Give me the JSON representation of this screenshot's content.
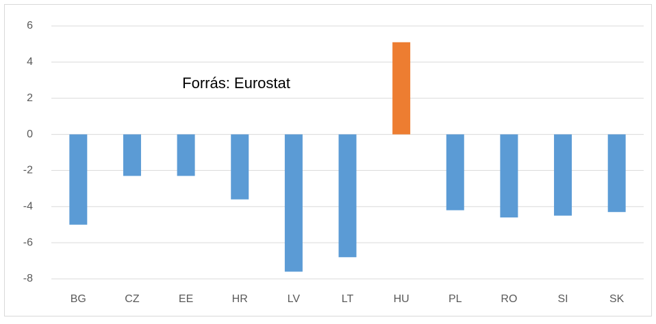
{
  "chart_data": {
    "type": "bar",
    "categories": [
      "BG",
      "CZ",
      "EE",
      "HR",
      "LV",
      "LT",
      "HU",
      "PL",
      "RO",
      "SI",
      "SK"
    ],
    "values": [
      -5.0,
      -2.3,
      -2.3,
      -3.6,
      -7.6,
      -6.8,
      5.1,
      -4.2,
      -4.6,
      -4.5,
      -4.3
    ],
    "colors": [
      "#5b9bd5",
      "#5b9bd5",
      "#5b9bd5",
      "#5b9bd5",
      "#5b9bd5",
      "#5b9bd5",
      "#ed7d31",
      "#5b9bd5",
      "#5b9bd5",
      "#5b9bd5",
      "#5b9bd5"
    ],
    "annotation": "Forrás: Eurostat",
    "ylim": [
      -8,
      6
    ],
    "yticks": [
      -8,
      -6,
      -4,
      -2,
      0,
      2,
      4,
      6
    ],
    "grid": true
  }
}
